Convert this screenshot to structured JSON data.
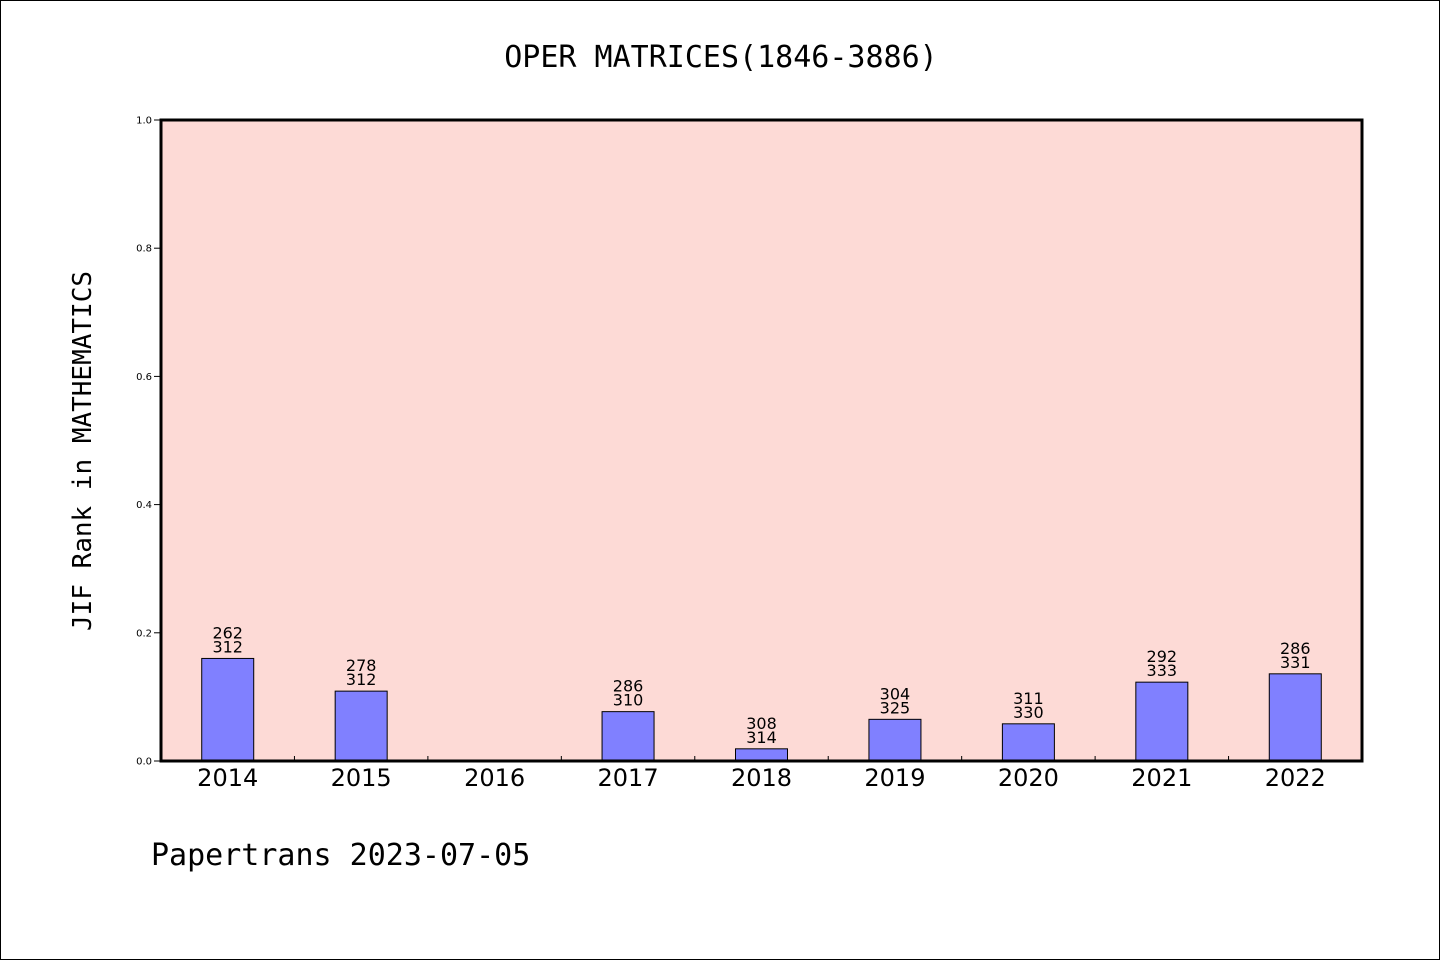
{
  "chart_data": {
    "type": "bar",
    "title": "OPER MATRICES(1846-3886)",
    "xlabel": "",
    "ylabel": "JIF Rank in MATHEMATICS",
    "ylim": [
      0,
      1.0
    ],
    "yticks": [
      "0.0",
      "0.2",
      "0.4",
      "0.6",
      "0.8",
      "1.0"
    ],
    "categories": [
      "2014",
      "2015",
      "2016",
      "2017",
      "2018",
      "2019",
      "2020",
      "2021",
      "2022"
    ],
    "series": [
      {
        "values": [
          0.16,
          0.109,
          null,
          0.077,
          0.019,
          0.065,
          0.058,
          0.123,
          0.136
        ],
        "rank": [
          "262",
          "278",
          "",
          "286",
          "308",
          "304",
          "311",
          "292",
          "286"
        ],
        "total": [
          "312",
          "312",
          "",
          "310",
          "314",
          "325",
          "330",
          "333",
          "331"
        ]
      }
    ],
    "grid": false,
    "colors": {
      "plot_background": "#FDDAD6",
      "bar_fill": "#8080FF",
      "bar_edge": "#000000"
    }
  },
  "footer": {
    "text": "Papertrans 2023-07-05"
  }
}
